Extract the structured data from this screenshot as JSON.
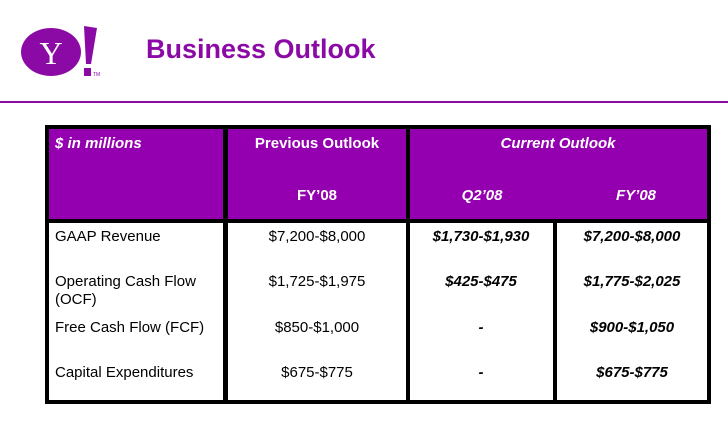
{
  "header": {
    "logo_text": "Y!",
    "title": "Business Outlook"
  },
  "table": {
    "units_label": "$ in millions",
    "previous_label": "Previous Outlook",
    "current_label": "Current Outlook",
    "prev_fy": "FY’08",
    "cur_q": "Q2’08",
    "cur_fy": "FY’08",
    "rows": [
      {
        "label": "GAAP Revenue",
        "prev": "$7,200-$8,000",
        "q2": "$1,730-$1,930",
        "fy": "$7,200-$8,000"
      },
      {
        "label": "Operating Cash Flow",
        "label2": "(OCF)",
        "prev": "$1,725-$1,975",
        "q2": "$425-$475",
        "fy": "$1,775-$2,025"
      },
      {
        "label": "Free Cash Flow (FCF)",
        "prev": "$850-$1,000",
        "q2": "-",
        "fy": "$900-$1,050"
      },
      {
        "label": "Capital Expenditures",
        "prev": "$675-$775",
        "q2": "-",
        "fy": "$675-$775"
      }
    ]
  }
}
